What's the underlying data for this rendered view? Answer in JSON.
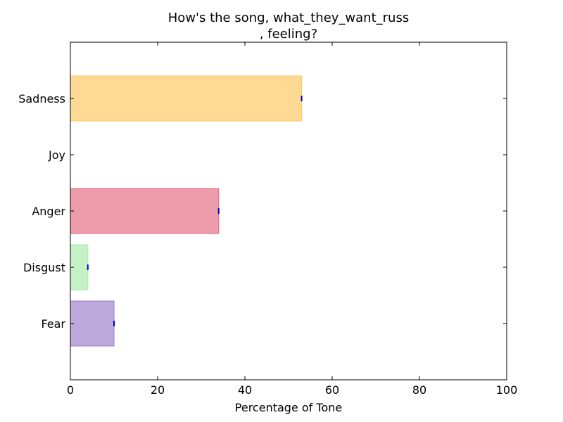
{
  "chart_data": {
    "type": "bar",
    "orientation": "horizontal",
    "title_lines": [
      "How's the song, what_they_want_russ",
      ", feeling?"
    ],
    "xlabel": "Percentage of Tone",
    "ylabel": "",
    "xlim": [
      0,
      100
    ],
    "xticks": [
      "0",
      "20",
      "40",
      "60",
      "80",
      "100"
    ],
    "grid": false,
    "categories": [
      "Fear",
      "Disgust",
      "Anger",
      "Joy",
      "Sadness"
    ],
    "values": [
      10,
      4,
      34,
      0,
      53
    ],
    "colors": {
      "Fear": "#9370c4",
      "Disgust": "#9ee89e",
      "Anger": "#e05a73",
      "Joy": "#ffffff",
      "Sadness": "#ffc14d"
    },
    "bar_alpha": 0.6,
    "error_marker_color": "#0000cc"
  }
}
